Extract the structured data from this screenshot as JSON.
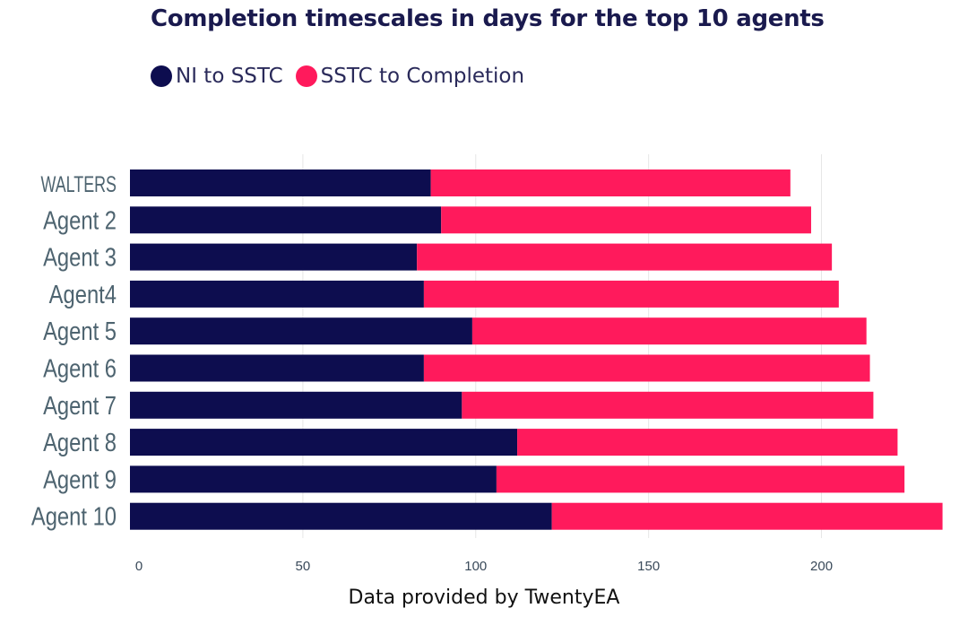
{
  "chart_data": {
    "type": "bar",
    "orientation": "horizontal",
    "stacked": true,
    "title": "Completion timescales in days for the top 10 agents",
    "categories": [
      "WALTERS",
      "Agent 2",
      "Agent 3",
      "Agent4",
      "Agent 5",
      "Agent 6",
      "Agent 7",
      "Agent 8",
      "Agent 9",
      "Agent 10"
    ],
    "highlight_category": "WALTERS",
    "series": [
      {
        "name": "NI to SSTC",
        "color": "#0d0d4f",
        "values": [
          87,
          90,
          83,
          85,
          99,
          85,
          96,
          112,
          106,
          122
        ]
      },
      {
        "name": "SSTC to Completion",
        "color": "#ff1a5c",
        "values": [
          104,
          107,
          120,
          120,
          114,
          129,
          119,
          110,
          118,
          113
        ]
      }
    ],
    "xlim": [
      0,
      232
    ],
    "xticks": [
      "0",
      "50",
      "100",
      "150",
      "200"
    ],
    "grid": true,
    "legend_position": "top-left",
    "highlight_color": "#ff3d8b",
    "footer": "Data provided by TwentyEA"
  }
}
